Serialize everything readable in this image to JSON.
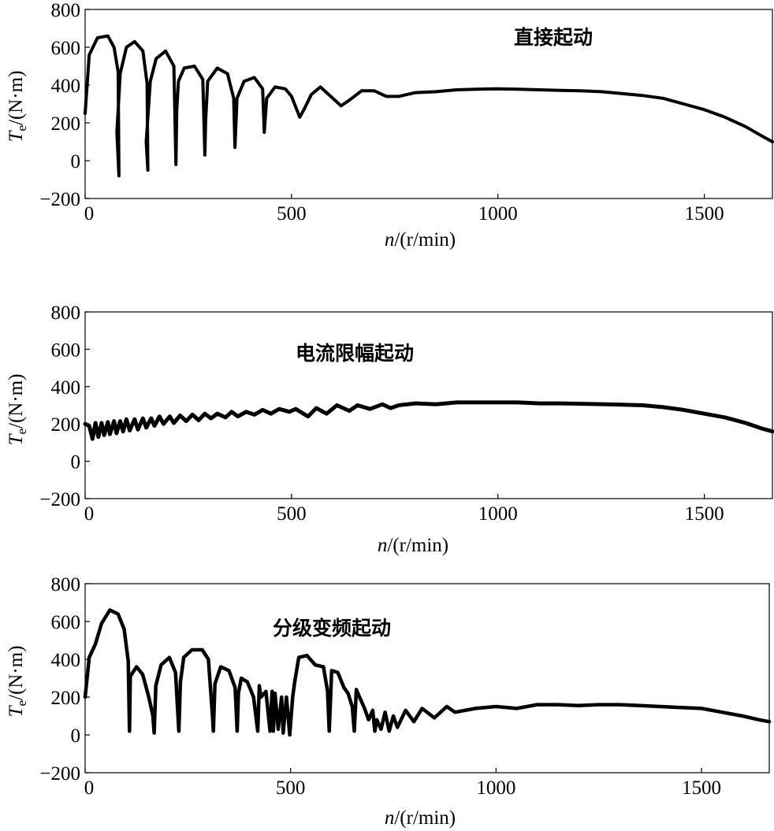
{
  "chart_data": [
    {
      "type": "line",
      "annotation": "直接起动",
      "xlabel_var": "n",
      "xlabel_unit": "/(r/min)",
      "ylabel_var": "T",
      "ylabel_sub": "e",
      "ylabel_unit": "/(N·m)",
      "xlim": [
        0,
        1665
      ],
      "ylim": [
        -200,
        800
      ],
      "xticks": [
        0,
        500,
        1000,
        1500
      ],
      "yticks": [
        800,
        600,
        400,
        200,
        0,
        -200
      ],
      "grid": false,
      "series": [
        {
          "x": [
            0,
            10,
            30,
            55,
            70,
            80,
            82,
            77,
            85,
            100,
            120,
            140,
            150,
            152,
            148,
            158,
            172,
            195,
            215,
            220,
            222,
            226,
            240,
            265,
            285,
            290,
            292,
            297,
            320,
            345,
            360,
            363,
            368,
            385,
            410,
            430,
            434,
            440,
            460,
            485,
            500,
            520,
            530,
            548,
            570,
            590,
            620,
            640,
            670,
            700,
            730,
            760,
            800,
            850,
            900,
            950,
            1000,
            1050,
            1100,
            1150,
            1200,
            1250,
            1300,
            1350,
            1400,
            1450,
            1500,
            1550,
            1600,
            1640,
            1665
          ],
          "y": [
            250,
            560,
            650,
            660,
            600,
            470,
            -80,
            150,
            460,
            600,
            630,
            580,
            410,
            -50,
            100,
            420,
            540,
            580,
            500,
            -20,
            270,
            420,
            490,
            500,
            430,
            30,
            210,
            420,
            490,
            460,
            330,
            70,
            330,
            420,
            440,
            380,
            150,
            330,
            390,
            380,
            340,
            230,
            270,
            350,
            390,
            350,
            290,
            320,
            370,
            370,
            340,
            340,
            360,
            365,
            375,
            378,
            380,
            378,
            375,
            372,
            370,
            365,
            355,
            345,
            330,
            300,
            270,
            230,
            180,
            130,
            100
          ]
        }
      ]
    },
    {
      "type": "line",
      "annotation": "电流限幅起动",
      "xlabel_var": "n",
      "xlabel_unit": "/(r/min)",
      "ylabel_var": "T",
      "ylabel_sub": "e",
      "ylabel_unit": "/(N·m)",
      "xlim": [
        0,
        1665
      ],
      "ylim": [
        -200,
        800
      ],
      "xticks": [
        0,
        500,
        1000,
        1500
      ],
      "yticks": [
        800,
        600,
        400,
        200,
        0,
        -200
      ],
      "grid": false,
      "series": [
        {
          "x": [
            0,
            10,
            18,
            25,
            32,
            40,
            46,
            55,
            60,
            70,
            76,
            85,
            92,
            100,
            108,
            120,
            128,
            140,
            148,
            160,
            168,
            180,
            190,
            205,
            215,
            230,
            245,
            260,
            275,
            290,
            305,
            320,
            340,
            355,
            370,
            390,
            410,
            430,
            450,
            470,
            495,
            510,
            540,
            560,
            585,
            610,
            640,
            660,
            690,
            720,
            740,
            760,
            800,
            850,
            900,
            950,
            1000,
            1050,
            1100,
            1150,
            1200,
            1250,
            1300,
            1350,
            1400,
            1450,
            1500,
            1550,
            1600,
            1640,
            1665
          ],
          "y": [
            200,
            190,
            120,
            205,
            130,
            205,
            140,
            210,
            145,
            215,
            150,
            215,
            160,
            225,
            165,
            225,
            170,
            230,
            180,
            230,
            190,
            240,
            200,
            240,
            205,
            245,
            215,
            250,
            220,
            255,
            230,
            255,
            235,
            265,
            240,
            265,
            250,
            275,
            255,
            280,
            265,
            280,
            240,
            285,
            255,
            300,
            270,
            300,
            280,
            305,
            285,
            300,
            310,
            305,
            315,
            315,
            315,
            315,
            310,
            310,
            308,
            306,
            303,
            300,
            290,
            275,
            255,
            235,
            205,
            175,
            160
          ]
        }
      ]
    },
    {
      "type": "line",
      "annotation": "分级变频起动",
      "xlabel_var": "n",
      "xlabel_unit": "/(r/min)",
      "ylabel_var": "T",
      "ylabel_sub": "e",
      "ylabel_unit": "/(N·m)",
      "xlim": [
        0,
        1665
      ],
      "ylim": [
        -200,
        800
      ],
      "xticks": [
        0,
        500,
        1000,
        1500
      ],
      "yticks": [
        800,
        600,
        400,
        200,
        0,
        -200
      ],
      "grid": false,
      "series": [
        {
          "x": [
            0,
            10,
            25,
            40,
            60,
            80,
            95,
            105,
            108,
            110,
            125,
            140,
            155,
            165,
            168,
            172,
            185,
            205,
            220,
            228,
            232,
            240,
            260,
            285,
            300,
            310,
            312,
            316,
            330,
            350,
            365,
            370,
            373,
            380,
            395,
            410,
            420,
            424,
            428,
            440,
            450,
            455,
            458,
            462,
            470,
            478,
            482,
            490,
            498,
            505,
            510,
            520,
            540,
            560,
            580,
            590,
            594,
            600,
            615,
            630,
            640,
            650,
            655,
            660,
            668,
            680,
            690,
            700,
            705,
            710,
            720,
            730,
            740,
            750,
            760,
            780,
            800,
            820,
            850,
            880,
            900,
            950,
            1000,
            1050,
            1100,
            1150,
            1200,
            1250,
            1300,
            1350,
            1400,
            1450,
            1500,
            1550,
            1600,
            1640,
            1665
          ],
          "y": [
            200,
            410,
            480,
            590,
            660,
            640,
            560,
            390,
            20,
            310,
            360,
            320,
            200,
            100,
            10,
            260,
            370,
            410,
            330,
            20,
            280,
            410,
            450,
            450,
            400,
            100,
            20,
            270,
            360,
            340,
            250,
            20,
            220,
            300,
            280,
            200,
            20,
            260,
            200,
            230,
            20,
            230,
            20,
            220,
            30,
            200,
            10,
            200,
            0,
            200,
            280,
            410,
            420,
            370,
            360,
            230,
            20,
            340,
            330,
            250,
            220,
            150,
            20,
            240,
            200,
            140,
            80,
            130,
            20,
            80,
            30,
            120,
            20,
            100,
            40,
            130,
            70,
            140,
            90,
            150,
            120,
            140,
            150,
            140,
            160,
            160,
            155,
            160,
            160,
            155,
            150,
            145,
            140,
            120,
            100,
            80,
            70
          ]
        }
      ]
    }
  ]
}
